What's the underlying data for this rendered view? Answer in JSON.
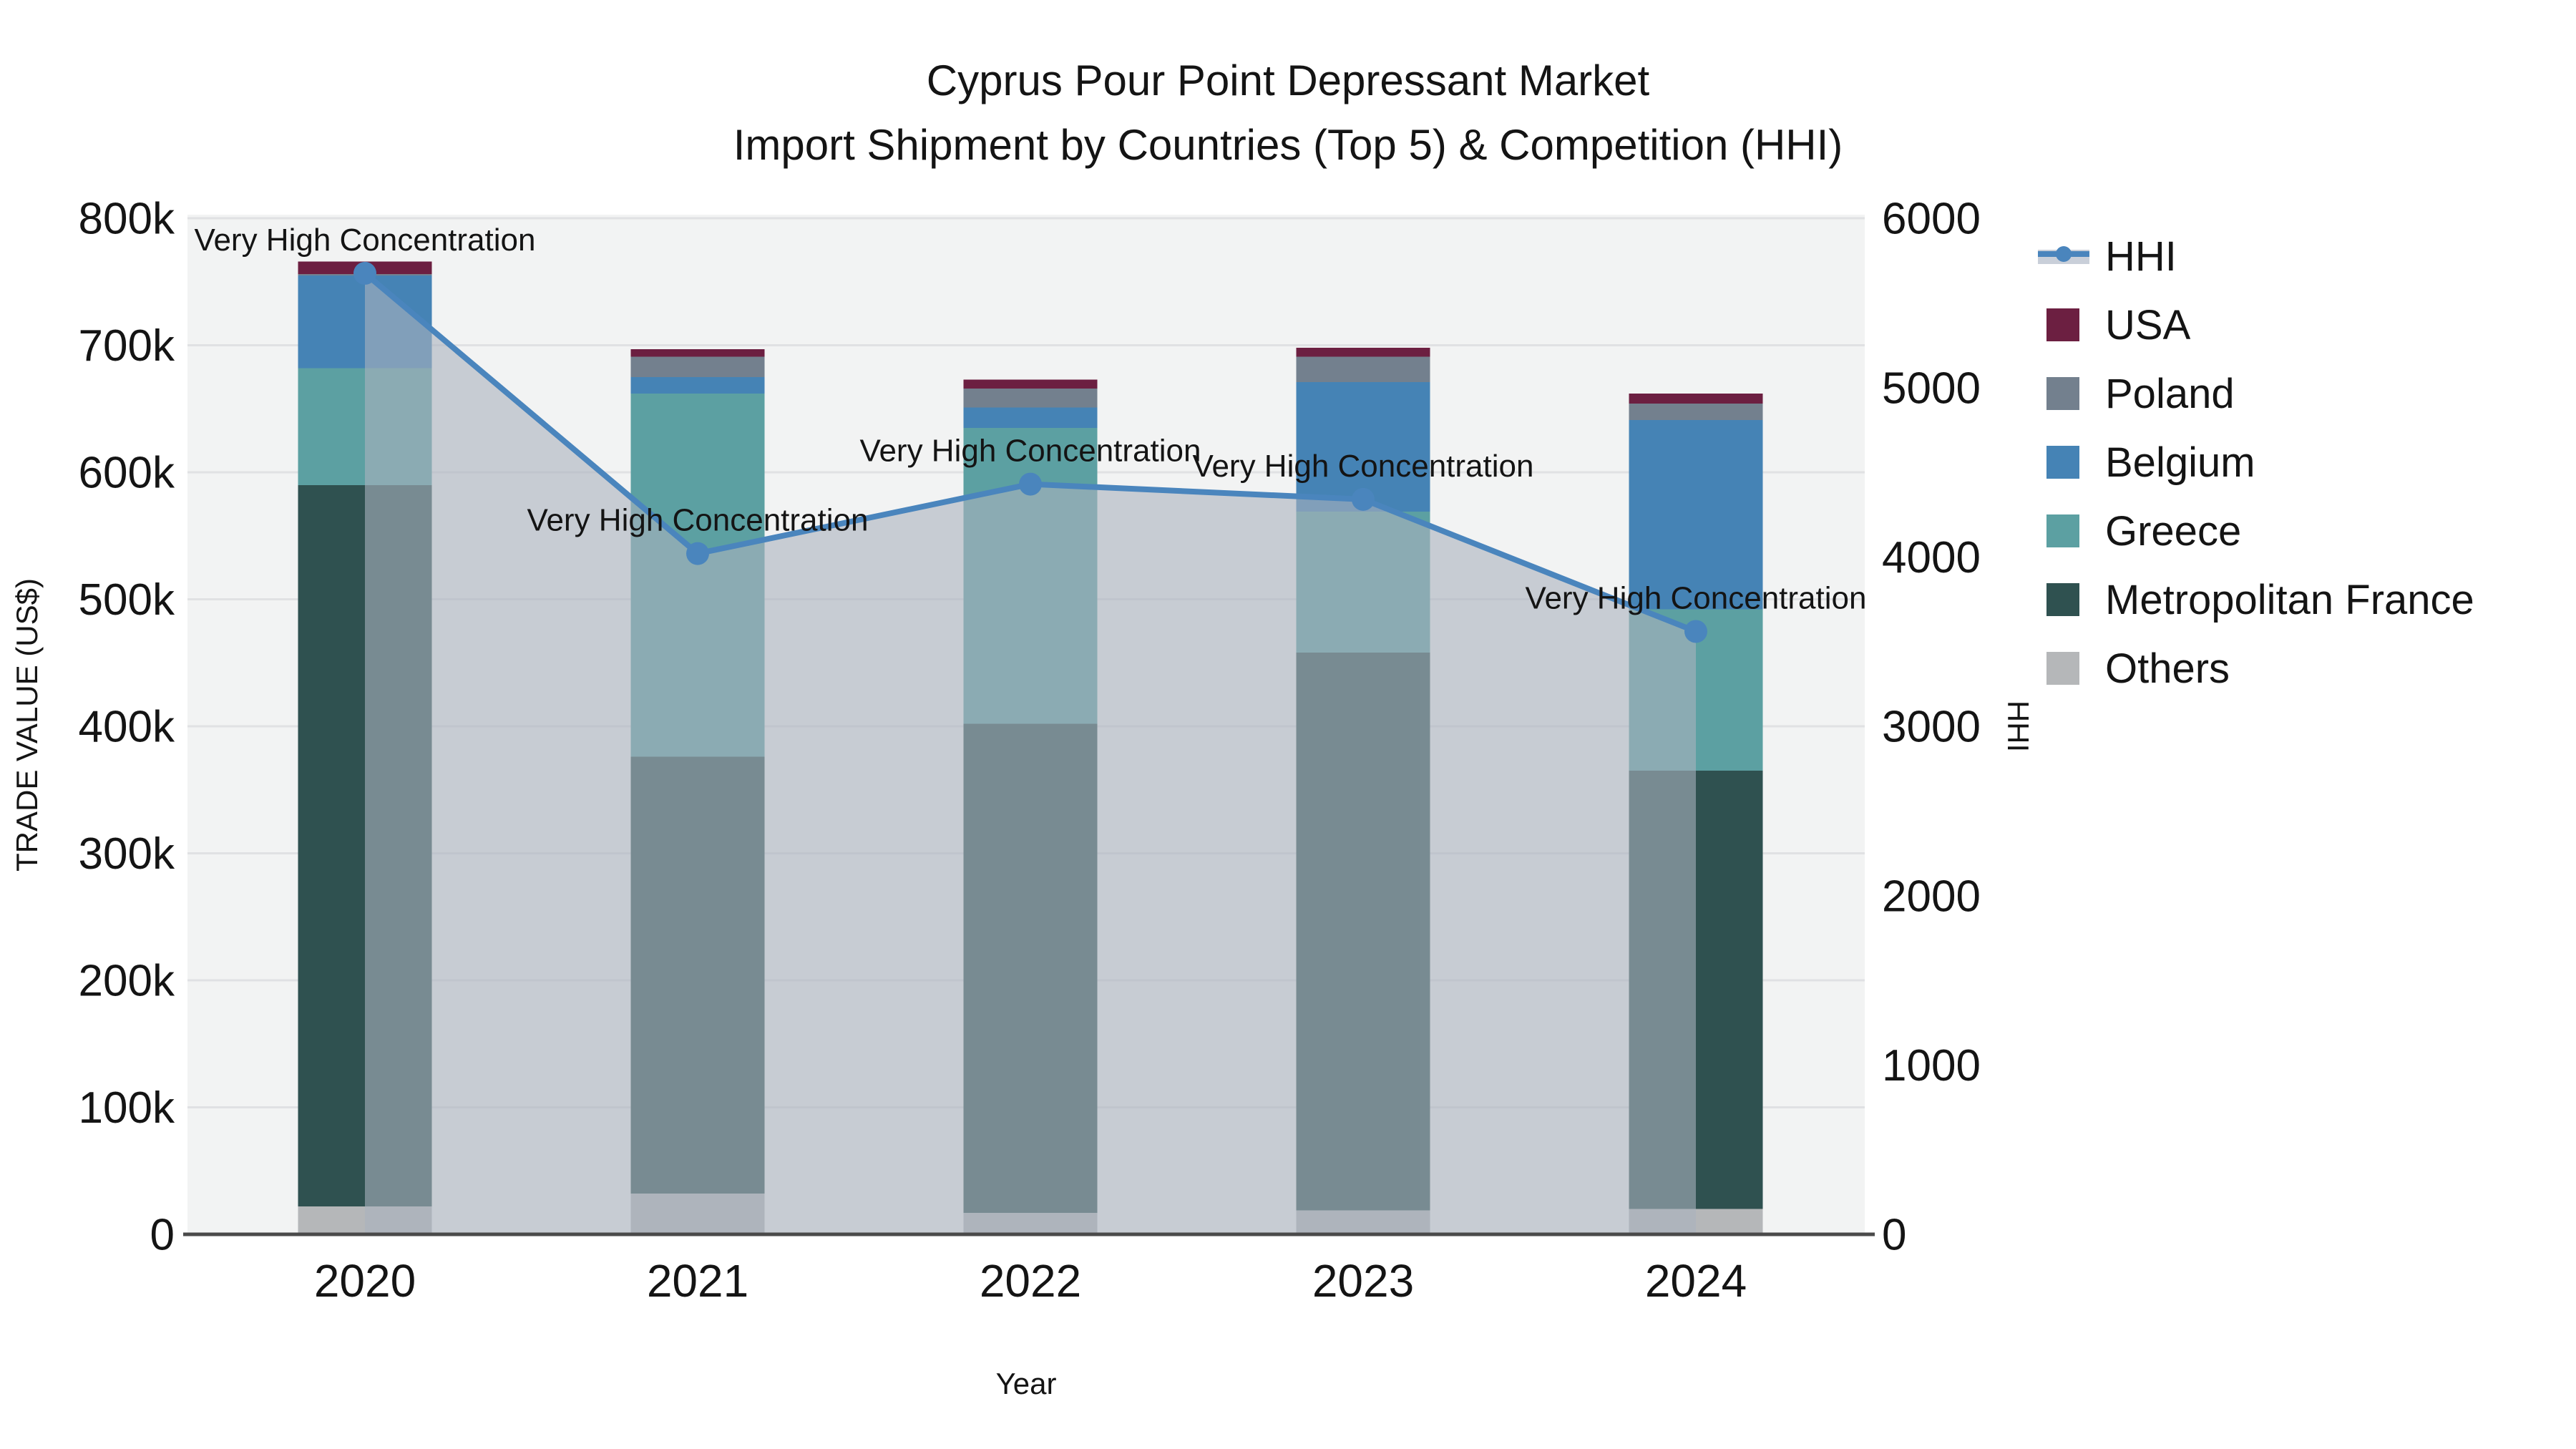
{
  "title": "Cyprus Pour Point Depressant Market",
  "subtitle": "Import Shipment by Countries (Top 5) & Competition (HHI)",
  "chart_data": {
    "type": "bar+line",
    "categories": [
      "2020",
      "2021",
      "2022",
      "2023",
      "2024"
    ],
    "xlabel": "Year",
    "ylabel_left": "TRADE VALUE (US$)",
    "ylabel_right": "HHI",
    "y_left": {
      "min": 0,
      "max": 800000,
      "tick_step": 100000,
      "tick_labels": [
        "0",
        "100k",
        "200k",
        "300k",
        "400k",
        "500k",
        "600k",
        "700k",
        "800k"
      ]
    },
    "y_right": {
      "min": 0,
      "max": 6000,
      "tick_step": 1000,
      "tick_labels": [
        "0",
        "1000",
        "2000",
        "3000",
        "4000",
        "5000",
        "6000"
      ]
    },
    "grid": true,
    "series": [
      {
        "name": "Others",
        "color": "#b5b7b9",
        "values": [
          22000,
          32000,
          17000,
          19000,
          20000
        ]
      },
      {
        "name": "Metropolitan France",
        "color": "#2f5150",
        "values": [
          568000,
          344000,
          385000,
          439000,
          345000
        ]
      },
      {
        "name": "Greece",
        "color": "#5ca0a2",
        "values": [
          92000,
          286000,
          233000,
          111000,
          127000
        ]
      },
      {
        "name": "Belgium",
        "color": "#4583b5",
        "values": [
          73000,
          13000,
          16000,
          102000,
          149000
        ]
      },
      {
        "name": "Poland",
        "color": "#73808e",
        "values": [
          1000,
          16000,
          15000,
          20000,
          13000
        ]
      },
      {
        "name": "USA",
        "color": "#6c1f41",
        "values": [
          10000,
          6000,
          7000,
          7000,
          8000
        ]
      }
    ],
    "bar_totals": [
      766000,
      697000,
      673000,
      698000,
      662000
    ],
    "hhi": {
      "name": "HHI",
      "values": [
        5675,
        4020,
        4430,
        4340,
        3560
      ],
      "line_color": "#4a85bd",
      "area_color": "rgba(170,178,190,0.6)",
      "annotation_text": "Very High Concentration",
      "annotations": [
        "Very High Concentration",
        "Very High Concentration",
        "Very High Concentration",
        "Very High Concentration",
        "Very High Concentration"
      ]
    },
    "legend": {
      "items": [
        {
          "label": "HHI",
          "type": "line",
          "color": "#4a85bd"
        },
        {
          "label": "USA",
          "type": "box",
          "color": "#6c1f41"
        },
        {
          "label": "Poland",
          "type": "box",
          "color": "#73808e"
        },
        {
          "label": "Belgium",
          "type": "box",
          "color": "#4583b5"
        },
        {
          "label": "Greece",
          "type": "box",
          "color": "#5ca0a2"
        },
        {
          "label": "Metropolitan France",
          "type": "box",
          "color": "#2f5150"
        },
        {
          "label": "Others",
          "type": "box",
          "color": "#b5b7b9"
        }
      ]
    },
    "colors": {
      "plot_bg": "#f2f3f3",
      "gridline": "#e0e1e3",
      "axis_line": "#4a4a4a",
      "text": "#141414"
    }
  }
}
